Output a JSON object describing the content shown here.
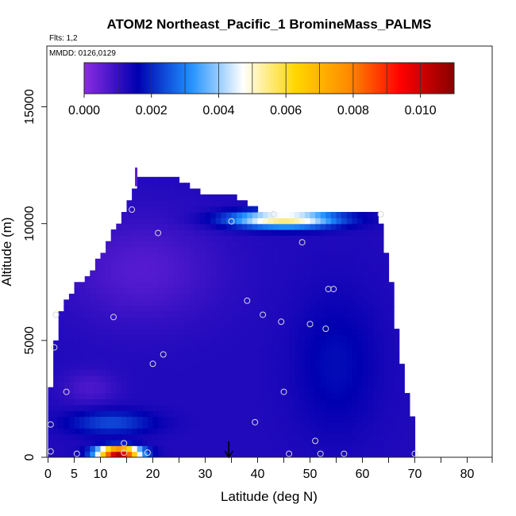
{
  "chart_data": {
    "type": "heatmap",
    "title": "ATOM2 Northeast_Pacific_1 BromineMass_PALMS",
    "flights_note": "Flts: 1,2",
    "dates_note": "MMDD: 0126,0129",
    "xlabel": "Latitude (deg N)",
    "ylabel": "Altitude (m)",
    "xlim": [
      0,
      85
    ],
    "ylim": [
      0,
      17600
    ],
    "x_ticks": [
      0,
      5,
      10,
      20,
      30,
      40,
      50,
      60,
      70,
      80
    ],
    "y_ticks": [
      0,
      5000,
      10000,
      15000
    ],
    "x_minor_ticks": [
      15,
      25,
      35,
      45,
      55,
      65,
      75,
      85
    ],
    "colorbar": {
      "range": [
        0,
        0.011
      ],
      "tick_values": [
        0,
        0.002,
        0.004,
        0.006,
        0.008,
        0.01
      ],
      "tick_labels": [
        "0.000",
        "0.002",
        "0.004",
        "0.006",
        "0.008",
        "0.010"
      ],
      "colors": [
        "#8a2be2",
        "#0000b0",
        "#1e90ff",
        "#ffffff",
        "#ffd700",
        "#ff8c00",
        "#ff0000",
        "#8b0000"
      ]
    },
    "grid_profile": {
      "lat": [
        0,
        2,
        5,
        8,
        10,
        12,
        15,
        18,
        20,
        23,
        25,
        28,
        30,
        35,
        40,
        45,
        50,
        55,
        60,
        63,
        65,
        67,
        70
      ],
      "top_alt": [
        2000,
        6000,
        7200,
        7800,
        8500,
        9300,
        10600,
        12000,
        12000,
        12000,
        11700,
        11400,
        11200,
        11100,
        10500,
        10400,
        10400,
        10400,
        10400,
        10400,
        8200,
        4500,
        1000
      ]
    },
    "data_summary": "Bromine mass concentration, mostly 0.000-0.002 over 0-70 deg N and 0-12000 m; higher values 0.004-0.006 near 10000 m between 30-63 deg N; surface maximum near 0.011 at 10-20 deg N.",
    "sample_points": [
      {
        "lat": 0.5,
        "alt": 250
      },
      {
        "lat": 0.5,
        "alt": 1400
      },
      {
        "lat": 1.2,
        "alt": 4700
      },
      {
        "lat": 1.5,
        "alt": 6100
      },
      {
        "lat": 3.5,
        "alt": 2800
      },
      {
        "lat": 5.5,
        "alt": 150
      },
      {
        "lat": 14.5,
        "alt": 200
      },
      {
        "lat": 12.5,
        "alt": 6000
      },
      {
        "lat": 14.5,
        "alt": 600
      },
      {
        "lat": 16,
        "alt": 10600
      },
      {
        "lat": 19,
        "alt": 200
      },
      {
        "lat": 20,
        "alt": 4000
      },
      {
        "lat": 21,
        "alt": 9600
      },
      {
        "lat": 22,
        "alt": 4400
      },
      {
        "lat": 35,
        "alt": 10100
      },
      {
        "lat": 38,
        "alt": 6700
      },
      {
        "lat": 39.5,
        "alt": 1500
      },
      {
        "lat": 41,
        "alt": 6100
      },
      {
        "lat": 43,
        "alt": 10400
      },
      {
        "lat": 44.5,
        "alt": 5800
      },
      {
        "lat": 45,
        "alt": 2800
      },
      {
        "lat": 46,
        "alt": 150
      },
      {
        "lat": 48.5,
        "alt": 9200
      },
      {
        "lat": 50,
        "alt": 5700
      },
      {
        "lat": 51,
        "alt": 700
      },
      {
        "lat": 52,
        "alt": 150
      },
      {
        "lat": 53,
        "alt": 5500
      },
      {
        "lat": 53.5,
        "alt": 7200
      },
      {
        "lat": 54.5,
        "alt": 7200
      },
      {
        "lat": 56.5,
        "alt": 150
      },
      {
        "lat": 63.5,
        "alt": 10400
      },
      {
        "lat": 70,
        "alt": 150
      }
    ],
    "arrow_marker_lat": 34.5,
    "grid": false,
    "legend_placement": "top (colorbar inside plot)"
  }
}
